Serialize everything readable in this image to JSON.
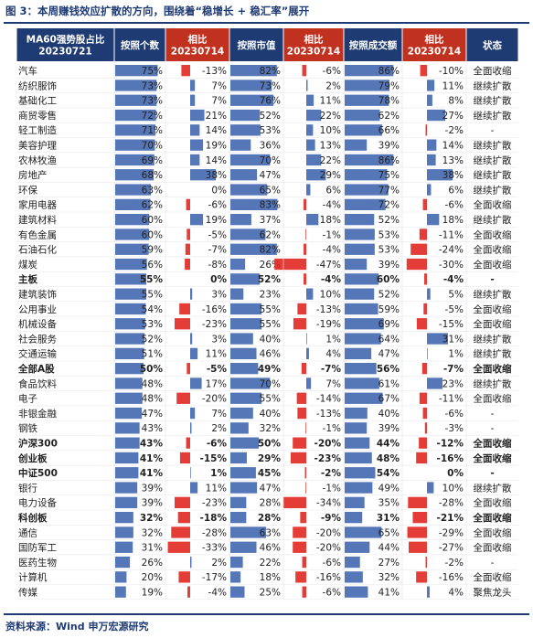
{
  "title": "图 3：本周赚钱效应扩散的方向，围绕着“稳增长 + 稳汇率”展开",
  "source": "资料来源：Wind 申万宏源研究",
  "colors": {
    "header_bg": "#1f3b73",
    "header_alt_bg": "#c0311f",
    "header_text": "#ffffff",
    "blue_bar": "#3e63ad",
    "red_bar": "#e0221b"
  },
  "chart_data": {
    "type": "table",
    "columns": [
      {
        "key": "name",
        "label": "MA60强势股占比\n20230721"
      },
      {
        "key": "cap_ratio",
        "label": "按照个数"
      },
      {
        "key": "cap_delta",
        "label": "相比\n20230714"
      },
      {
        "key": "mv_ratio",
        "label": "按照市值"
      },
      {
        "key": "mv_delta",
        "label": "相比\n20230714"
      },
      {
        "key": "vol_ratio",
        "label": "按照成交额"
      },
      {
        "key": "vol_delta",
        "label": "相比\n20230714"
      },
      {
        "key": "status",
        "label": "状态"
      }
    ],
    "rows": [
      {
        "name": "汽车",
        "bold": false,
        "values": [
          75,
          -13,
          82,
          -6,
          86,
          -10
        ],
        "labels": [
          "75%",
          "-13%",
          "82%",
          "-6%",
          "86%",
          "-10%"
        ],
        "status": "全面收缩"
      },
      {
        "name": "纺织服饰",
        "bold": false,
        "values": [
          73,
          7,
          73,
          2,
          79,
          11
        ],
        "labels": [
          "73%",
          "7%",
          "73%",
          "2%",
          "79%",
          "11%"
        ],
        "status": "继续扩散"
      },
      {
        "name": "基础化工",
        "bold": false,
        "values": [
          73,
          7,
          76,
          11,
          78,
          8
        ],
        "labels": [
          "73%",
          "7%",
          "76%",
          "11%",
          "78%",
          "8%"
        ],
        "status": "继续扩散"
      },
      {
        "name": "商贸零售",
        "bold": false,
        "values": [
          72,
          21,
          52,
          22,
          62,
          27
        ],
        "labels": [
          "72%",
          "21%",
          "52%",
          "22%",
          "62%",
          "27%"
        ],
        "status": "继续扩散"
      },
      {
        "name": "轻工制造",
        "bold": false,
        "values": [
          71,
          14,
          53,
          10,
          66,
          -2
        ],
        "labels": [
          "71%",
          "14%",
          "53%",
          "10%",
          "66%",
          "-2%"
        ],
        "status": "-"
      },
      {
        "name": "美容护理",
        "bold": false,
        "values": [
          70,
          19,
          36,
          13,
          39,
          14
        ],
        "labels": [
          "70%",
          "19%",
          "36%",
          "13%",
          "39%",
          "14%"
        ],
        "status": "继续扩散"
      },
      {
        "name": "农林牧渔",
        "bold": false,
        "values": [
          69,
          14,
          70,
          22,
          86,
          13
        ],
        "labels": [
          "69%",
          "14%",
          "70%",
          "22%",
          "86%",
          "13%"
        ],
        "status": "继续扩散"
      },
      {
        "name": "房地产",
        "bold": false,
        "values": [
          68,
          38,
          47,
          29,
          75,
          38
        ],
        "labels": [
          "68%",
          "38%",
          "47%",
          "29%",
          "75%",
          "38%"
        ],
        "status": "继续扩散"
      },
      {
        "name": "环保",
        "bold": false,
        "values": [
          63,
          0,
          65,
          6,
          77,
          6
        ],
        "labels": [
          "63%",
          "0%",
          "65%",
          "6%",
          "77%",
          "6%"
        ],
        "status": "继续扩散"
      },
      {
        "name": "家用电器",
        "bold": false,
        "values": [
          62,
          -6,
          83,
          -4,
          72,
          -6
        ],
        "labels": [
          "62%",
          "-6%",
          "83%",
          "-4%",
          "72%",
          "-6%"
        ],
        "status": "全面收缩"
      },
      {
        "name": "建筑材料",
        "bold": false,
        "values": [
          60,
          19,
          37,
          18,
          52,
          18
        ],
        "labels": [
          "60%",
          "19%",
          "37%",
          "18%",
          "52%",
          "18%"
        ],
        "status": "继续扩散"
      },
      {
        "name": "有色金属",
        "bold": false,
        "values": [
          60,
          -5,
          62,
          -1,
          53,
          -11
        ],
        "labels": [
          "60%",
          "-5%",
          "62%",
          "-1%",
          "53%",
          "-11%"
        ],
        "status": "全面收缩"
      },
      {
        "name": "石油石化",
        "bold": false,
        "values": [
          59,
          -7,
          82,
          -4,
          53,
          -24
        ],
        "labels": [
          "59%",
          "-7%",
          "82%",
          "-4%",
          "53%",
          "-24%"
        ],
        "status": "全面收缩"
      },
      {
        "name": "煤炭",
        "bold": false,
        "values": [
          56,
          -8,
          26,
          -47,
          39,
          -30
        ],
        "labels": [
          "56%",
          "-8%",
          "26%",
          "-47%",
          "39%",
          "-30%"
        ],
        "status": "全面收缩"
      },
      {
        "name": "主板",
        "bold": true,
        "values": [
          55,
          0,
          52,
          -4,
          60,
          -4
        ],
        "labels": [
          "55%",
          "0%",
          "52%",
          "-4%",
          "60%",
          "-4%"
        ],
        "status": "-"
      },
      {
        "name": "建筑装饰",
        "bold": false,
        "values": [
          55,
          3,
          23,
          10,
          52,
          5
        ],
        "labels": [
          "55%",
          "3%",
          "23%",
          "10%",
          "52%",
          "5%"
        ],
        "status": "继续扩散"
      },
      {
        "name": "公用事业",
        "bold": false,
        "values": [
          54,
          -16,
          55,
          -13,
          59,
          -5
        ],
        "labels": [
          "54%",
          "-16%",
          "55%",
          "-13%",
          "59%",
          "-5%"
        ],
        "status": "全面收缩"
      },
      {
        "name": "机械设备",
        "bold": false,
        "values": [
          53,
          -23,
          55,
          -19,
          69,
          -15
        ],
        "labels": [
          "53%",
          "-23%",
          "55%",
          "-19%",
          "69%",
          "-15%"
        ],
        "status": "全面收缩"
      },
      {
        "name": "社会服务",
        "bold": false,
        "values": [
          52,
          3,
          40,
          1,
          64,
          31
        ],
        "labels": [
          "52%",
          "3%",
          "40%",
          "1%",
          "64%",
          "31%"
        ],
        "status": "继续扩散"
      },
      {
        "name": "交通运输",
        "bold": false,
        "values": [
          51,
          11,
          46,
          4,
          47,
          1
        ],
        "labels": [
          "51%",
          "11%",
          "46%",
          "4%",
          "47%",
          "1%"
        ],
        "status": "继续扩散"
      },
      {
        "name": "全部A股",
        "bold": true,
        "values": [
          50,
          -5,
          49,
          -7,
          56,
          -7
        ],
        "labels": [
          "50%",
          "-5%",
          "49%",
          "-7%",
          "56%",
          "-7%"
        ],
        "status": "全面收缩"
      },
      {
        "name": "食品饮料",
        "bold": false,
        "values": [
          48,
          17,
          70,
          7,
          61,
          23
        ],
        "labels": [
          "48%",
          "17%",
          "70%",
          "7%",
          "61%",
          "23%"
        ],
        "status": "继续扩散"
      },
      {
        "name": "电子",
        "bold": false,
        "values": [
          48,
          -20,
          55,
          -14,
          67,
          -11
        ],
        "labels": [
          "48%",
          "-20%",
          "55%",
          "-14%",
          "67%",
          "-11%"
        ],
        "status": "全面收缩"
      },
      {
        "name": "非银金融",
        "bold": false,
        "values": [
          47,
          7,
          40,
          -13,
          40,
          -6
        ],
        "labels": [
          "47%",
          "7%",
          "40%",
          "-13%",
          "40%",
          "-6%"
        ],
        "status": "-"
      },
      {
        "name": "钢铁",
        "bold": false,
        "values": [
          43,
          2,
          32,
          -1,
          39,
          -3
        ],
        "labels": [
          "43%",
          "2%",
          "32%",
          "-1%",
          "39%",
          "-3%"
        ],
        "status": "-"
      },
      {
        "name": "沪深300",
        "bold": true,
        "values": [
          43,
          -6,
          50,
          -20,
          44,
          -12
        ],
        "labels": [
          "43%",
          "-6%",
          "50%",
          "-20%",
          "44%",
          "-12%"
        ],
        "status": "全面收缩"
      },
      {
        "name": "创业板",
        "bold": true,
        "values": [
          41,
          -15,
          29,
          -23,
          48,
          -16
        ],
        "labels": [
          "41%",
          "-15%",
          "29%",
          "-23%",
          "48%",
          "-16%"
        ],
        "status": "全面收缩"
      },
      {
        "name": "中证500",
        "bold": true,
        "values": [
          41,
          1,
          45,
          -2,
          54,
          0
        ],
        "labels": [
          "41%",
          "1%",
          "45%",
          "-2%",
          "54%",
          "0%"
        ],
        "status": "-"
      },
      {
        "name": "银行",
        "bold": false,
        "values": [
          39,
          11,
          47,
          -1,
          49,
          10
        ],
        "labels": [
          "39%",
          "11%",
          "47%",
          "-1%",
          "49%",
          "10%"
        ],
        "status": "继续扩散"
      },
      {
        "name": "电力设备",
        "bold": false,
        "values": [
          39,
          -23,
          28,
          -34,
          35,
          -28
        ],
        "labels": [
          "39%",
          "-23%",
          "28%",
          "-34%",
          "35%",
          "-28%"
        ],
        "status": "全面收缩"
      },
      {
        "name": "科创板",
        "bold": true,
        "values": [
          32,
          -18,
          28,
          -9,
          31,
          -21
        ],
        "labels": [
          "32%",
          "-18%",
          "28%",
          "-9%",
          "31%",
          "-21%"
        ],
        "status": "全面收缩"
      },
      {
        "name": "通信",
        "bold": false,
        "values": [
          32,
          -28,
          63,
          -20,
          65,
          -29
        ],
        "labels": [
          "32%",
          "-28%",
          "63%",
          "-20%",
          "65%",
          "-29%"
        ],
        "status": "全面收缩"
      },
      {
        "name": "国防军工",
        "bold": false,
        "values": [
          31,
          -33,
          46,
          -20,
          44,
          -27
        ],
        "labels": [
          "31%",
          "-33%",
          "46%",
          "-20%",
          "44%",
          "-27%"
        ],
        "status": "全面收缩"
      },
      {
        "name": "医药生物",
        "bold": false,
        "values": [
          26,
          2,
          22,
          -6,
          27,
          -2
        ],
        "labels": [
          "26%",
          "2%",
          "22%",
          "-6%",
          "27%",
          "-2%"
        ],
        "status": "-"
      },
      {
        "name": "计算机",
        "bold": false,
        "values": [
          20,
          -17,
          18,
          -16,
          32,
          -16
        ],
        "labels": [
          "20%",
          "-17%",
          "18%",
          "-16%",
          "32%",
          "-16%"
        ],
        "status": "全面收缩"
      },
      {
        "name": "传媒",
        "bold": false,
        "values": [
          19,
          -4,
          25,
          -6,
          41,
          4
        ],
        "labels": [
          "19%",
          "-4%",
          "25%",
          "-6%",
          "41%",
          "4%"
        ],
        "status": "聚焦龙头"
      }
    ]
  }
}
